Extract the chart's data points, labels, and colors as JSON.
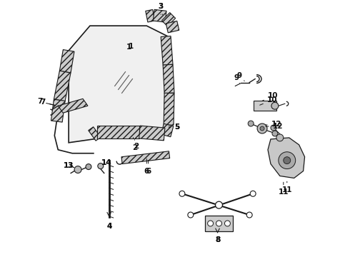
{
  "bg_color": "#ffffff",
  "lc": "#1a1a1a",
  "label_color": "#111111",
  "label_size": 7.5,
  "fig_w": 4.9,
  "fig_h": 3.6,
  "dpi": 100
}
